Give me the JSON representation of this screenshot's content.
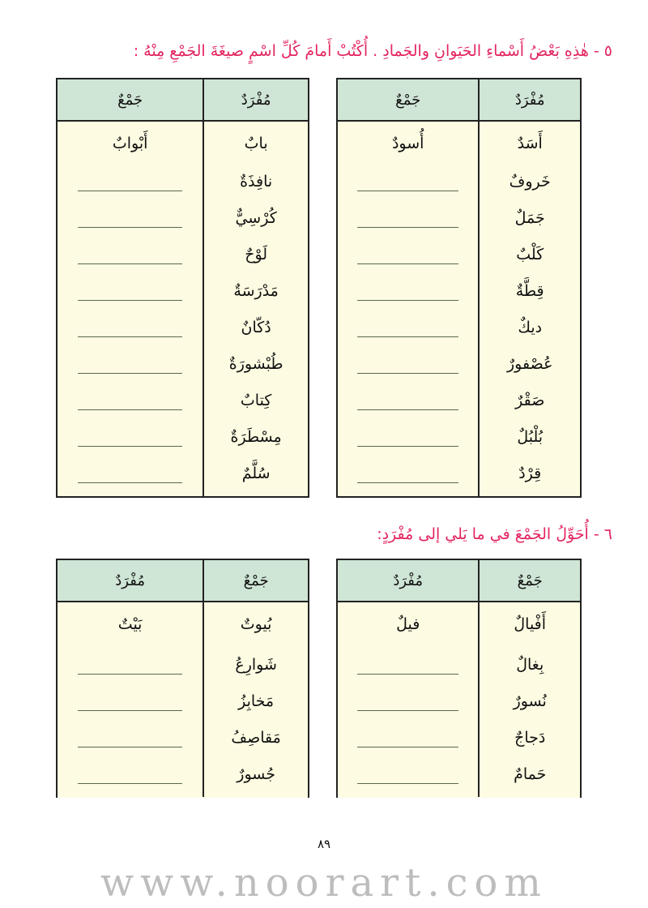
{
  "exercise5": {
    "title": "٥ - هٰذِهِ بَعْضُ أَسْماءِ الحَيَوانِ والجَمادِ . أُكْتُبْ أَمامَ كُلِّ اسْمٍ صيغَةَ الجَمْعِ مِنْهُ :",
    "tables": [
      {
        "headers": [
          "مُفْرَدٌ",
          "جَمْعٌ"
        ],
        "rows": [
          {
            "given": "أَسَدٌ",
            "answer": "أُسودٌ"
          },
          {
            "given": "خَروفٌ",
            "answer": ""
          },
          {
            "given": "جَمَلٌ",
            "answer": ""
          },
          {
            "given": "كَلْبٌ",
            "answer": ""
          },
          {
            "given": "قِطَّةٌ",
            "answer": ""
          },
          {
            "given": "ديكٌ",
            "answer": ""
          },
          {
            "given": "عُصْفورٌ",
            "answer": ""
          },
          {
            "given": "صَقْرٌ",
            "answer": ""
          },
          {
            "given": "بُلْبُلٌ",
            "answer": ""
          },
          {
            "given": "قِرْدٌ",
            "answer": ""
          }
        ]
      },
      {
        "headers": [
          "مُفْرَدٌ",
          "جَمْعٌ"
        ],
        "rows": [
          {
            "given": "بابٌ",
            "answer": "أَبْوابٌ"
          },
          {
            "given": "نافِذَةٌ",
            "answer": ""
          },
          {
            "given": "كُرْسِيٌّ",
            "answer": ""
          },
          {
            "given": "لَوْحٌ",
            "answer": ""
          },
          {
            "given": "مَدْرَسَةٌ",
            "answer": ""
          },
          {
            "given": "دُكّانٌ",
            "answer": ""
          },
          {
            "given": "طُبْشورَةٌ",
            "answer": ""
          },
          {
            "given": "كِتابٌ",
            "answer": ""
          },
          {
            "given": "مِسْطَرَةٌ",
            "answer": ""
          },
          {
            "given": "سُلَّمٌ",
            "answer": ""
          }
        ]
      }
    ]
  },
  "exercise6": {
    "title": "٦ - أُحَوِّلُ الجَمْعَ في ما يَلي إلى مُفْرَدٍ:",
    "tables": [
      {
        "headers": [
          "جَمْعٌ",
          "مُفْرَدٌ"
        ],
        "rows": [
          {
            "given": "أَفْيالٌ",
            "answer": "فيلٌ"
          },
          {
            "given": "بِغالٌ",
            "answer": ""
          },
          {
            "given": "نُسورٌ",
            "answer": ""
          },
          {
            "given": "دَجاجٌ",
            "answer": ""
          },
          {
            "given": "حَمامٌ",
            "answer": ""
          }
        ]
      },
      {
        "headers": [
          "جَمْعٌ",
          "مُفْرَدٌ"
        ],
        "rows": [
          {
            "given": "بُيوتٌ",
            "answer": "بَيْتٌ"
          },
          {
            "given": "شَوارِعُ",
            "answer": ""
          },
          {
            "given": "مَخابِزُ",
            "answer": ""
          },
          {
            "given": "مَقاصِفُ",
            "answer": ""
          },
          {
            "given": "جُسورٌ",
            "answer": ""
          }
        ]
      }
    ]
  },
  "watermark": "www.noorart.com",
  "page_number": "٨٩",
  "colors": {
    "title": "#e3245f",
    "header_bg": "#cfe5d6",
    "body_bg": "#fdfbe2"
  }
}
